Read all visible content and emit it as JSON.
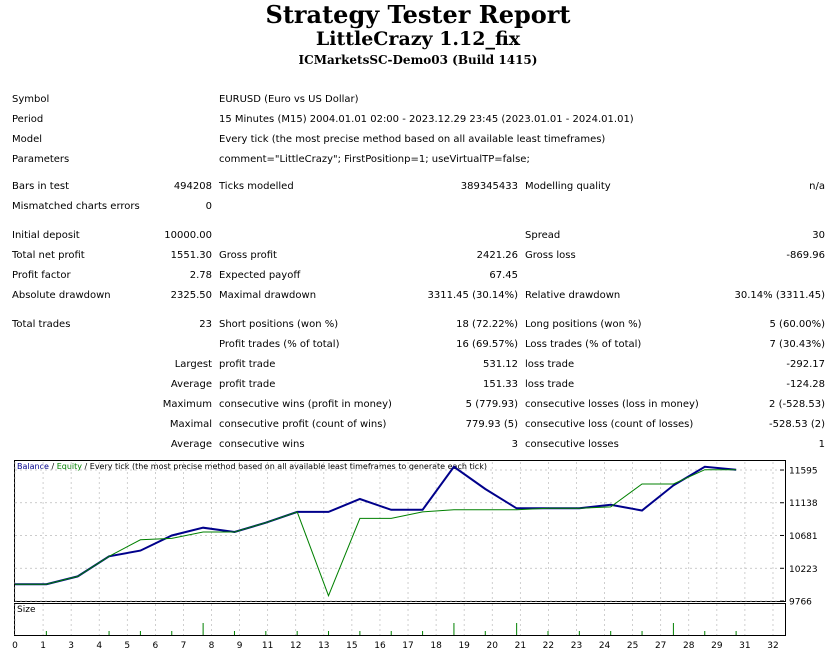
{
  "header": {
    "title": "Strategy Tester Report",
    "ea_name": "LittleCrazy 1.12_fix",
    "server": "ICMarketsSC-Demo03 (Build 1415)"
  },
  "info": {
    "symbol_label": "Symbol",
    "symbol": "EURUSD (Euro vs US Dollar)",
    "period_label": "Period",
    "period": "15 Minutes (M15) 2004.01.01 02:00 - 2023.12.29 23:45 (2023.01.01 - 2024.01.01)",
    "model_label": "Model",
    "model": "Every tick (the most precise method based on all available least timeframes)",
    "params_label": "Parameters",
    "params": "comment=\"LittleCrazy\"; FirstPositionp=1; useVirtualTP=false;"
  },
  "ticks": {
    "bars_label": "Bars in test",
    "bars": "494208",
    "ticks_label": "Ticks modelled",
    "ticks": "389345433",
    "quality_label": "Modelling quality",
    "quality": "n/a",
    "mismatch_label": "Mismatched charts errors",
    "mismatch": "0"
  },
  "results": {
    "deposit_label": "Initial deposit",
    "deposit": "10000.00",
    "spread_label": "Spread",
    "spread": "30",
    "net_label": "Total net profit",
    "net": "1551.30",
    "gross_profit_label": "Gross profit",
    "gross_profit": "2421.26",
    "gross_loss_label": "Gross loss",
    "gross_loss": "-869.96",
    "pf_label": "Profit factor",
    "pf": "2.78",
    "ep_label": "Expected payoff",
    "ep": "67.45",
    "abs_dd_label": "Absolute drawdown",
    "abs_dd": "2325.50",
    "max_dd_label": "Maximal drawdown",
    "max_dd": "3311.45 (30.14%)",
    "rel_dd_label": "Relative drawdown",
    "rel_dd": "30.14% (3311.45)"
  },
  "trades": {
    "total_label": "Total trades",
    "total": "23",
    "short_label": "Short positions (won %)",
    "short": "18 (72.22%)",
    "long_label": "Long positions (won %)",
    "long": "5 (60.00%)",
    "profit_trades_label": "Profit trades (% of total)",
    "profit_trades": "16 (69.57%)",
    "loss_trades_label": "Loss trades (% of total)",
    "loss_trades": "7 (30.43%)",
    "largest_label": "Largest",
    "largest_profit_label": "profit trade",
    "largest_profit": "531.12",
    "largest_loss_label": "loss trade",
    "largest_loss": "-292.17",
    "average_label": "Average",
    "avg_profit_label": "profit trade",
    "avg_profit": "151.33",
    "avg_loss_label": "loss trade",
    "avg_loss": "-124.28",
    "maximum_label": "Maximum",
    "max_wins_label": "consecutive wins (profit in money)",
    "max_wins": "5 (779.93)",
    "max_losses_label": "consecutive losses (loss in money)",
    "max_losses": "2 (-528.53)",
    "maximal_label": "Maximal",
    "maximal_profit_label": "consecutive profit (count of wins)",
    "maximal_profit": "779.93 (5)",
    "maximal_loss_label": "consecutive loss (count of losses)",
    "maximal_loss": "-528.53 (2)",
    "average2_label": "Average",
    "avg_wins_label": "consecutive wins",
    "avg_wins": "3",
    "avg_losses_label": "consecutive losses",
    "avg_losses": "1"
  },
  "chart_legend": {
    "balance": "Balance",
    "sep1": " / ",
    "equity": "Equity",
    "rest": " / Every tick (the most precise method based on all available least timeframes to generate each tick)",
    "size_label": "Size"
  },
  "chart_data": {
    "type": "line",
    "x": [
      0,
      1,
      2,
      3,
      4,
      5,
      6,
      7,
      8,
      9,
      10,
      11,
      12,
      13,
      14,
      15,
      16,
      17,
      18,
      19,
      20,
      21,
      22,
      23
    ],
    "series": [
      {
        "name": "Balance",
        "color": "#00008b",
        "values": [
          10000,
          10000,
          10110,
          10390,
          10470,
          10680,
          10790,
          10730,
          10860,
          11010,
          11010,
          11190,
          11040,
          11040,
          11640,
          11330,
          11060,
          11060,
          11060,
          11110,
          11030,
          11380,
          11640,
          11600
        ]
      },
      {
        "name": "Equity",
        "color": "#008000",
        "values": [
          10000,
          10000,
          10110,
          10390,
          10620,
          10640,
          10730,
          10730,
          10860,
          11010,
          9840,
          10920,
          10920,
          11010,
          11040,
          11040,
          11040,
          11060,
          11060,
          11080,
          11400,
          11400,
          11600,
          11600
        ]
      }
    ],
    "size": [
      0,
      1,
      0,
      1,
      1,
      1,
      3,
      1,
      1,
      1,
      1,
      1,
      1,
      1,
      3,
      1,
      3,
      1,
      1,
      1,
      1,
      3,
      1,
      1
    ],
    "x_ticks": [
      "0",
      "1",
      "3",
      "4",
      "5",
      "6",
      "7",
      "8",
      "9",
      "11",
      "12",
      "13",
      "15",
      "16",
      "17",
      "18",
      "19",
      "20",
      "21",
      "22",
      "23",
      "24",
      "25",
      "27",
      "28",
      "29",
      "31",
      "32"
    ],
    "y_ticks": [
      11595,
      11138,
      10681,
      10223,
      9766
    ],
    "ylim": [
      9766,
      11707
    ],
    "xlim": [
      0,
      24.4
    ],
    "grid": true
  }
}
